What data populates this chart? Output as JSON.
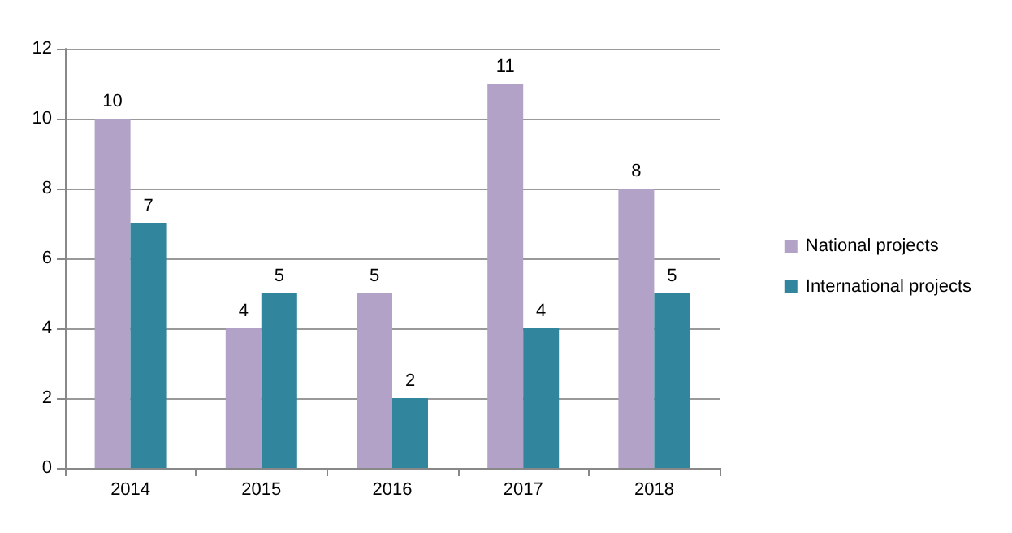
{
  "chart_data": {
    "type": "bar",
    "categories": [
      "2014",
      "2015",
      "2016",
      "2017",
      "2018"
    ],
    "series": [
      {
        "name": "National projects",
        "color": "#b3a2c7",
        "values": [
          10,
          4,
          5,
          11,
          8
        ]
      },
      {
        "name": "International projects",
        "color": "#31859c",
        "values": [
          7,
          5,
          2,
          4,
          5
        ]
      }
    ],
    "ylim": [
      0,
      12
    ],
    "yticks": [
      0,
      2,
      4,
      6,
      8,
      10,
      12
    ],
    "grid": "y",
    "legend": "right",
    "data_labels": true
  }
}
